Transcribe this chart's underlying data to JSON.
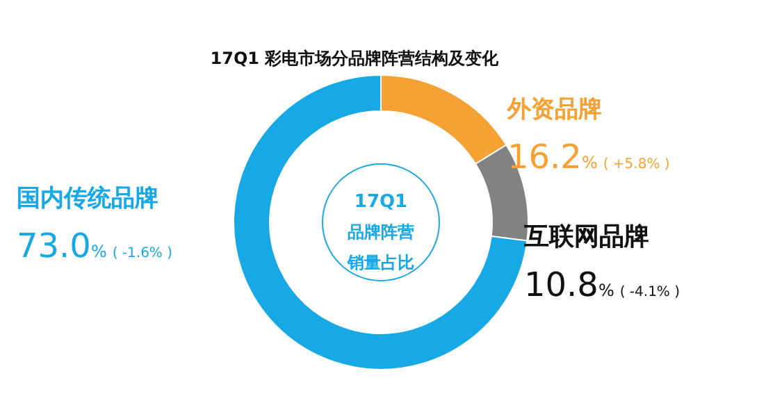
{
  "chart_data": {
    "type": "donut",
    "title": "17Q1 彩电市场分品牌阵营结构及变化",
    "categories": [
      "外资品牌",
      "互联网品牌",
      "国内传统品牌"
    ],
    "values": [
      16.2,
      10.8,
      73.0
    ],
    "colors": [
      "#f5a133",
      "#828282",
      "#17a9e6"
    ],
    "value_labels": [
      "16.2%",
      "10.8%",
      "73.0%"
    ],
    "annotations": [
      "17Q1",
      "品牌阵营",
      "销量占比",
      "( +5.8% )",
      "( -4.1% )",
      "( -1.6% )"
    ],
    "legend": false
  }
}
